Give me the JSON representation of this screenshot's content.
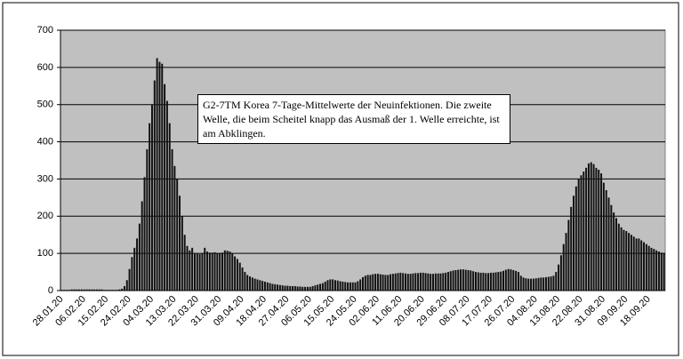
{
  "chart_data": {
    "type": "bar",
    "annotation": "G2-7TM  Korea 7-Tage-Mittelwerte der Neuinfektionen. Die zweite Welle, die beim Scheitel knapp das Ausmaß der 1. Welle erreichte, ist am Abklingen.",
    "categories": [
      "28.01.20",
      null,
      null,
      null,
      null,
      null,
      null,
      null,
      null,
      "06.02.20",
      null,
      null,
      null,
      null,
      null,
      null,
      null,
      null,
      "15.02.20",
      null,
      null,
      null,
      null,
      null,
      null,
      null,
      null,
      "24.02.20",
      null,
      null,
      null,
      null,
      null,
      null,
      null,
      null,
      "04.03.20",
      null,
      null,
      null,
      null,
      null,
      null,
      null,
      null,
      "13.03.20",
      null,
      null,
      null,
      null,
      null,
      null,
      null,
      null,
      "22.03.20",
      null,
      null,
      null,
      null,
      null,
      null,
      null,
      null,
      "31.03.20",
      null,
      null,
      null,
      null,
      null,
      null,
      null,
      null,
      "09.04.20",
      null,
      null,
      null,
      null,
      null,
      null,
      null,
      null,
      "18.04.20",
      null,
      null,
      null,
      null,
      null,
      null,
      null,
      null,
      "27.04.20",
      null,
      null,
      null,
      null,
      null,
      null,
      null,
      null,
      "06.05.20",
      null,
      null,
      null,
      null,
      null,
      null,
      null,
      null,
      "15.05.20",
      null,
      null,
      null,
      null,
      null,
      null,
      null,
      null,
      "24.05.20",
      null,
      null,
      null,
      null,
      null,
      null,
      null,
      null,
      "02.06.20",
      null,
      null,
      null,
      null,
      null,
      null,
      null,
      null,
      "11.06.20",
      null,
      null,
      null,
      null,
      null,
      null,
      null,
      null,
      "20.06.20",
      null,
      null,
      null,
      null,
      null,
      null,
      null,
      null,
      "29.06.20",
      null,
      null,
      null,
      null,
      null,
      null,
      null,
      null,
      "08.07.20",
      null,
      null,
      null,
      null,
      null,
      null,
      null,
      null,
      "17.07.20",
      null,
      null,
      null,
      null,
      null,
      null,
      null,
      null,
      "26.07.20",
      null,
      null,
      null,
      null,
      null,
      null,
      null,
      null,
      "04.08.20",
      null,
      null,
      null,
      null,
      null,
      null,
      null,
      null,
      "13.08.20",
      null,
      null,
      null,
      null,
      null,
      null,
      null,
      null,
      "22.08.20",
      null,
      null,
      null,
      null,
      null,
      null,
      null,
      null,
      "31.08.20",
      null,
      null,
      null,
      null,
      null,
      null,
      null,
      null,
      "09.09.20",
      null,
      null,
      null,
      null,
      null,
      null,
      null,
      null,
      "18.09.20",
      null,
      null,
      null,
      null,
      null,
      null
    ],
    "values": [
      2,
      2,
      2,
      2,
      3,
      3,
      3,
      3,
      3,
      3,
      3,
      3,
      3,
      3,
      3,
      3,
      3,
      2,
      2,
      2,
      2,
      2,
      2,
      3,
      5,
      12,
      28,
      58,
      90,
      115,
      140,
      180,
      240,
      305,
      380,
      450,
      500,
      565,
      625,
      615,
      610,
      555,
      510,
      450,
      380,
      335,
      300,
      255,
      200,
      150,
      120,
      108,
      115,
      100,
      100,
      98,
      100,
      115,
      105,
      102,
      102,
      103,
      100,
      100,
      102,
      108,
      107,
      105,
      100,
      92,
      85,
      75,
      62,
      50,
      42,
      38,
      35,
      32,
      30,
      28,
      26,
      24,
      22,
      20,
      18,
      17,
      16,
      15,
      14,
      13,
      13,
      12,
      12,
      12,
      11,
      11,
      10,
      10,
      10,
      10,
      12,
      14,
      16,
      18,
      20,
      24,
      28,
      30,
      30,
      28,
      27,
      25,
      24,
      23,
      22,
      22,
      22,
      22,
      25,
      30,
      36,
      40,
      42,
      42,
      44,
      45,
      45,
      44,
      43,
      42,
      42,
      44,
      45,
      46,
      47,
      48,
      47,
      46,
      45,
      45,
      46,
      47,
      47,
      48,
      48,
      47,
      46,
      45,
      45,
      46,
      46,
      46,
      47,
      48,
      50,
      52,
      54,
      55,
      56,
      57,
      57,
      56,
      55,
      54,
      52,
      50,
      49,
      48,
      48,
      47,
      47,
      48,
      48,
      49,
      50,
      51,
      53,
      56,
      58,
      57,
      55,
      53,
      50,
      40,
      35,
      33,
      32,
      32,
      32,
      33,
      34,
      35,
      35,
      36,
      37,
      38,
      40,
      50,
      70,
      95,
      125,
      155,
      190,
      225,
      255,
      280,
      300,
      310,
      320,
      330,
      342,
      345,
      340,
      330,
      325,
      315,
      290,
      270,
      250,
      230,
      210,
      195,
      180,
      170,
      163,
      160,
      155,
      150,
      145,
      140,
      140,
      135,
      130,
      125,
      120,
      115,
      112,
      108,
      105,
      102,
      100
    ],
    "color": "#111111",
    "ylim": [
      0,
      700
    ],
    "yticks": [
      0,
      100,
      200,
      300,
      400,
      500,
      600,
      700
    ],
    "grid": true
  }
}
